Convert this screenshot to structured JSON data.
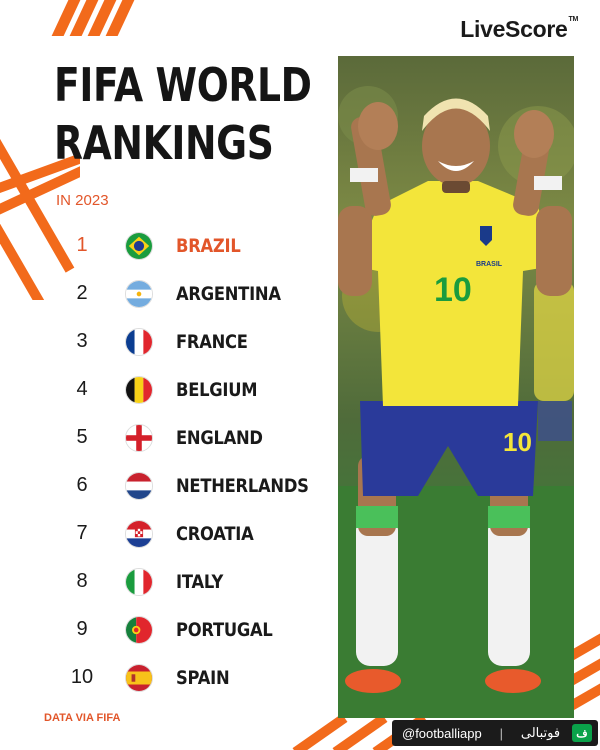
{
  "brand": {
    "logo_text": "LiveScore",
    "logo_mark": "TM"
  },
  "title": {
    "line1": "FIFA WORLD",
    "line2": "RANKINGS"
  },
  "subtitle": "IN 2023",
  "rankings": [
    {
      "rank": "1",
      "country": "BRAZIL",
      "flag": "brazil-flag-icon"
    },
    {
      "rank": "2",
      "country": "ARGENTINA",
      "flag": "argentina-flag-icon"
    },
    {
      "rank": "3",
      "country": "FRANCE",
      "flag": "france-flag-icon"
    },
    {
      "rank": "4",
      "country": "BELGIUM",
      "flag": "belgium-flag-icon"
    },
    {
      "rank": "5",
      "country": "ENGLAND",
      "flag": "england-flag-icon"
    },
    {
      "rank": "6",
      "country": "NETHERLANDS",
      "flag": "netherlands-flag-icon"
    },
    {
      "rank": "7",
      "country": "CROATIA",
      "flag": "croatia-flag-icon"
    },
    {
      "rank": "8",
      "country": "ITALY",
      "flag": "italy-flag-icon"
    },
    {
      "rank": "9",
      "country": "PORTUGAL",
      "flag": "portugal-flag-icon"
    },
    {
      "rank": "10",
      "country": "SPAIN",
      "flag": "spain-flag-icon"
    }
  ],
  "credit": "DATA VIA FIFA",
  "player_photo": {
    "jersey_number": "10",
    "shirt_text": "BRASIL",
    "shorts_number": "10"
  },
  "watermark": {
    "handle": "@footballiapp",
    "name": "فوتبالی",
    "icon_text": "ف"
  },
  "colors": {
    "accent": "#e2562a",
    "stripe": "#f26a1b",
    "text": "#151515",
    "shirt_yellow": "#f3e53a",
    "shorts_blue": "#2a3a9a"
  }
}
